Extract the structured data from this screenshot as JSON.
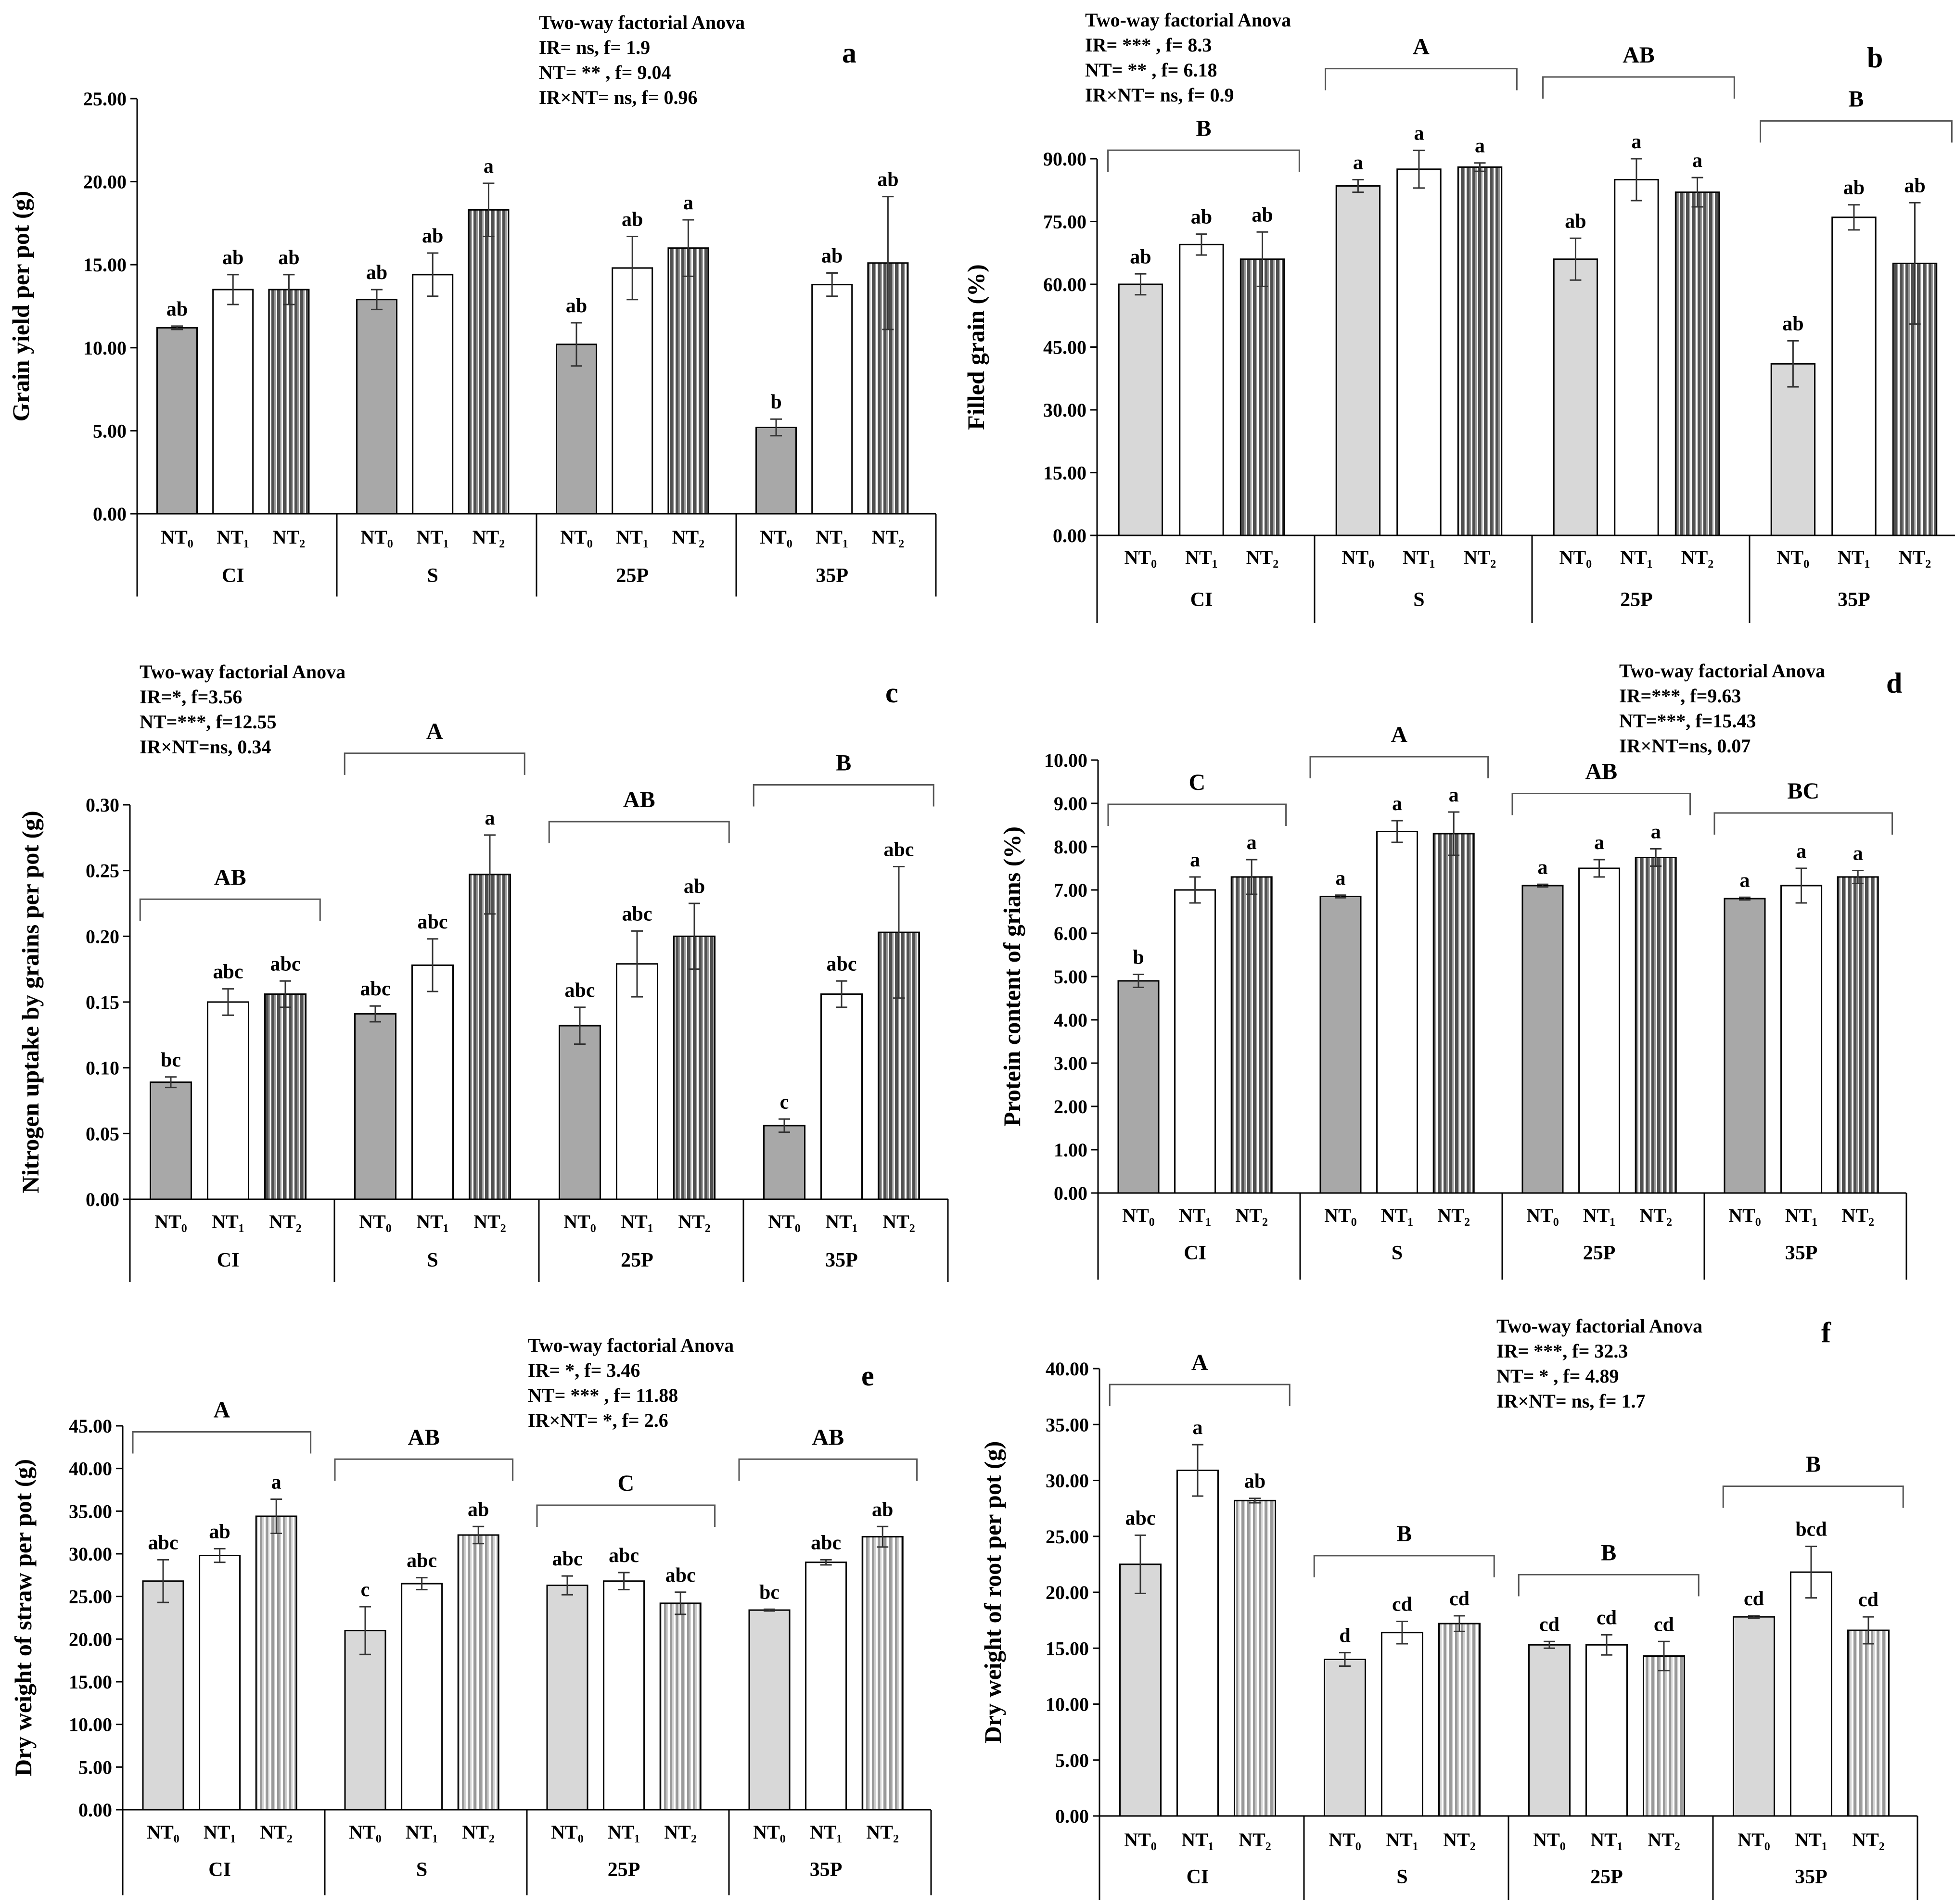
{
  "colors": {
    "NT0": "#c8c8c8",
    "NT0_dark": "#a8a8a8",
    "NT1": "#ffffff",
    "NT2": "#505050",
    "NT2_light": "#b4b4b4",
    "axis": "#000000"
  },
  "chart_data": [
    {
      "id": "a",
      "type": "bar",
      "panel_label": "a",
      "ylabel": "Grain yield per pot (g)",
      "ylim": [
        0,
        25
      ],
      "yticks": [
        "0.00",
        "5.00",
        "10.00",
        "15.00",
        "20.00",
        "25.00"
      ],
      "anova_title": "Two-way factorial Anova",
      "anova_lines": [
        "IR= ns, f= 1.9",
        "NT= ** , f= 9.04",
        "IR×NT= ns, f= 0.96"
      ],
      "series_labels": [
        "NT₀",
        "NT₁",
        "NT₂"
      ],
      "groups": [
        {
          "name": "CI",
          "values": [
            11.2,
            13.5,
            13.5
          ],
          "errors": [
            0.1,
            0.9,
            0.9
          ],
          "letters": [
            "ab",
            "ab",
            "ab"
          ],
          "bracket": ""
        },
        {
          "name": "S",
          "values": [
            12.9,
            14.4,
            18.3
          ],
          "errors": [
            0.6,
            1.3,
            1.6
          ],
          "letters": [
            "ab",
            "ab",
            "a"
          ],
          "bracket": ""
        },
        {
          "name": "25P",
          "values": [
            10.2,
            14.8,
            16.0
          ],
          "errors": [
            1.3,
            1.9,
            1.7
          ],
          "letters": [
            "ab",
            "ab",
            "a"
          ],
          "bracket": ""
        },
        {
          "name": "35P",
          "values": [
            5.2,
            13.8,
            15.1
          ],
          "errors": [
            0.5,
            0.7,
            4.0
          ],
          "letters": [
            "b",
            "ab",
            "ab"
          ],
          "bracket": ""
        }
      ]
    },
    {
      "id": "b",
      "type": "bar",
      "panel_label": "b",
      "ylabel": "Filled grain (%)",
      "ylim": [
        0,
        90
      ],
      "yticks": [
        "0.00",
        "15.00",
        "30.00",
        "45.00",
        "60.00",
        "75.00",
        "90.00"
      ],
      "anova_title": "Two-way factorial Anova",
      "anova_lines": [
        "IR= *** , f= 8.3",
        "NT= ** , f= 6.18",
        "IR×NT= ns, f= 0.9"
      ],
      "series_labels": [
        "NT₀",
        "NT₁",
        "NT₂"
      ],
      "groups": [
        {
          "name": "CI",
          "values": [
            60.0,
            69.5,
            66.0
          ],
          "errors": [
            2.5,
            2.5,
            6.5
          ],
          "letters": [
            "ab",
            "ab",
            "ab"
          ],
          "bracket": "B"
        },
        {
          "name": "S",
          "values": [
            83.5,
            87.5,
            88.0
          ],
          "errors": [
            1.5,
            4.5,
            1.0
          ],
          "letters": [
            "a",
            "a",
            "a"
          ],
          "bracket": "A"
        },
        {
          "name": "25P",
          "values": [
            66.0,
            85.0,
            82.0
          ],
          "errors": [
            5.0,
            5.0,
            3.5
          ],
          "letters": [
            "ab",
            "a",
            "a"
          ],
          "bracket": "AB"
        },
        {
          "name": "35P",
          "values": [
            41.0,
            76.0,
            65.0
          ],
          "errors": [
            5.5,
            3.0,
            14.5
          ],
          "letters": [
            "ab",
            "ab",
            "ab"
          ],
          "bracket": "B"
        }
      ]
    },
    {
      "id": "c",
      "type": "bar",
      "panel_label": "c",
      "ylabel": "Nitrogen uptake by grains per pot (g)",
      "ylim": [
        0,
        0.3
      ],
      "yticks": [
        "0.00",
        "0.05",
        "0.10",
        "0.15",
        "0.20",
        "0.25",
        "0.30"
      ],
      "anova_title": "Two-way factorial Anova",
      "anova_lines": [
        "IR=*, f=3.56",
        "NT=***, f=12.55",
        "IR×NT=ns, 0.34"
      ],
      "series_labels": [
        "NT₀",
        "NT₁",
        "NT₂"
      ],
      "groups": [
        {
          "name": "CI",
          "values": [
            0.089,
            0.15,
            0.156
          ],
          "errors": [
            0.004,
            0.01,
            0.01
          ],
          "letters": [
            "bc",
            "abc",
            "abc"
          ],
          "bracket": "AB"
        },
        {
          "name": "S",
          "values": [
            0.141,
            0.178,
            0.247
          ],
          "errors": [
            0.006,
            0.02,
            0.03
          ],
          "letters": [
            "abc",
            "abc",
            "a"
          ],
          "bracket": "A"
        },
        {
          "name": "25P",
          "values": [
            0.132,
            0.179,
            0.2
          ],
          "errors": [
            0.014,
            0.025,
            0.025
          ],
          "letters": [
            "abc",
            "abc",
            "ab"
          ],
          "bracket": "AB"
        },
        {
          "name": "35P",
          "values": [
            0.056,
            0.156,
            0.203
          ],
          "errors": [
            0.005,
            0.01,
            0.05
          ],
          "letters": [
            "c",
            "abc",
            "abc"
          ],
          "bracket": "B"
        }
      ]
    },
    {
      "id": "d",
      "type": "bar",
      "panel_label": "d",
      "ylabel": "Protein content of grians (%)",
      "ylim": [
        0,
        10
      ],
      "yticks": [
        "0.00",
        "1.00",
        "2.00",
        "3.00",
        "4.00",
        "5.00",
        "6.00",
        "7.00",
        "8.00",
        "9.00",
        "10.00"
      ],
      "anova_title": "Two-way factorial Anova",
      "anova_lines": [
        "IR=***, f=9.63",
        "NT=***, f=15.43",
        "IR×NT=ns, 0.07"
      ],
      "series_labels": [
        "NT₀",
        "NT₁",
        "NT₂"
      ],
      "groups": [
        {
          "name": "CI",
          "values": [
            4.9,
            7.0,
            7.3
          ],
          "errors": [
            0.15,
            0.3,
            0.4
          ],
          "letters": [
            "b",
            "a",
            "a"
          ],
          "bracket": "C"
        },
        {
          "name": "S",
          "values": [
            6.85,
            8.35,
            8.3
          ],
          "errors": [
            0.03,
            0.25,
            0.5
          ],
          "letters": [
            "a",
            "a",
            "a"
          ],
          "bracket": "A"
        },
        {
          "name": "25P",
          "values": [
            7.1,
            7.5,
            7.75
          ],
          "errors": [
            0.03,
            0.2,
            0.2
          ],
          "letters": [
            "a",
            "a",
            "a"
          ],
          "bracket": "AB"
        },
        {
          "name": "35P",
          "values": [
            6.8,
            7.1,
            7.3
          ],
          "errors": [
            0.03,
            0.4,
            0.15
          ],
          "letters": [
            "a",
            "a",
            "a"
          ],
          "bracket": "BC"
        }
      ]
    },
    {
      "id": "e",
      "type": "bar",
      "panel_label": "e",
      "ylabel": "Dry weight of straw per pot (g)",
      "ylim": [
        0,
        45
      ],
      "yticks": [
        "0.00",
        "5.00",
        "10.00",
        "15.00",
        "20.00",
        "25.00",
        "30.00",
        "35.00",
        "40.00",
        "45.00"
      ],
      "anova_title": "Two-way factorial Anova",
      "anova_lines": [
        "IR= *, f= 3.46",
        "NT= *** , f= 11.88",
        "IR×NT= *, f= 2.6"
      ],
      "series_labels": [
        "NT₀",
        "NT₁",
        "NT₂"
      ],
      "groups": [
        {
          "name": "CI",
          "values": [
            26.8,
            29.8,
            34.4
          ],
          "errors": [
            2.5,
            0.8,
            2.0
          ],
          "letters": [
            "abc",
            "ab",
            "a"
          ],
          "bracket": "A"
        },
        {
          "name": "S",
          "values": [
            21.0,
            26.5,
            32.2
          ],
          "errors": [
            2.8,
            0.7,
            1.0
          ],
          "letters": [
            "c",
            "abc",
            "ab"
          ],
          "bracket": "AB"
        },
        {
          "name": "25P",
          "values": [
            26.3,
            26.8,
            24.2
          ],
          "errors": [
            1.1,
            1.0,
            1.3
          ],
          "letters": [
            "abc",
            "abc",
            "abc"
          ],
          "bracket": "C"
        },
        {
          "name": "35P",
          "values": [
            23.4,
            29.0,
            32.0
          ],
          "errors": [
            0.1,
            0.3,
            1.2
          ],
          "letters": [
            "bc",
            "abc",
            "ab"
          ],
          "bracket": "AB"
        }
      ]
    },
    {
      "id": "f",
      "type": "bar",
      "panel_label": "f",
      "ylabel": "Dry weight of root per pot (g)",
      "ylim": [
        0,
        40
      ],
      "yticks": [
        "0.00",
        "5.00",
        "10.00",
        "15.00",
        "20.00",
        "25.00",
        "30.00",
        "35.00",
        "40.00"
      ],
      "anova_title": "Two-way factorial Anova",
      "anova_lines": [
        "IR= ***, f= 32.3",
        "NT= * , f= 4.89",
        "IR×NT= ns, f= 1.7"
      ],
      "series_labels": [
        "NT₀",
        "NT₁",
        "NT₂"
      ],
      "groups": [
        {
          "name": "CI",
          "values": [
            22.5,
            30.9,
            28.2
          ],
          "errors": [
            2.6,
            2.3,
            0.2
          ],
          "letters": [
            "abc",
            "a",
            "ab"
          ],
          "bracket": "A"
        },
        {
          "name": "S",
          "values": [
            14.0,
            16.4,
            17.2
          ],
          "errors": [
            0.6,
            1.0,
            0.7
          ],
          "letters": [
            "d",
            "cd",
            "cd"
          ],
          "bracket": "B"
        },
        {
          "name": "25P",
          "values": [
            15.3,
            15.3,
            14.3
          ],
          "errors": [
            0.3,
            0.9,
            1.3
          ],
          "letters": [
            "cd",
            "cd",
            "cd"
          ],
          "bracket": "B"
        },
        {
          "name": "35P",
          "values": [
            17.8,
            21.8,
            16.6
          ],
          "errors": [
            0.1,
            2.3,
            1.2
          ],
          "letters": [
            "cd",
            "bcd",
            "cd"
          ],
          "bracket": "B"
        }
      ]
    }
  ]
}
